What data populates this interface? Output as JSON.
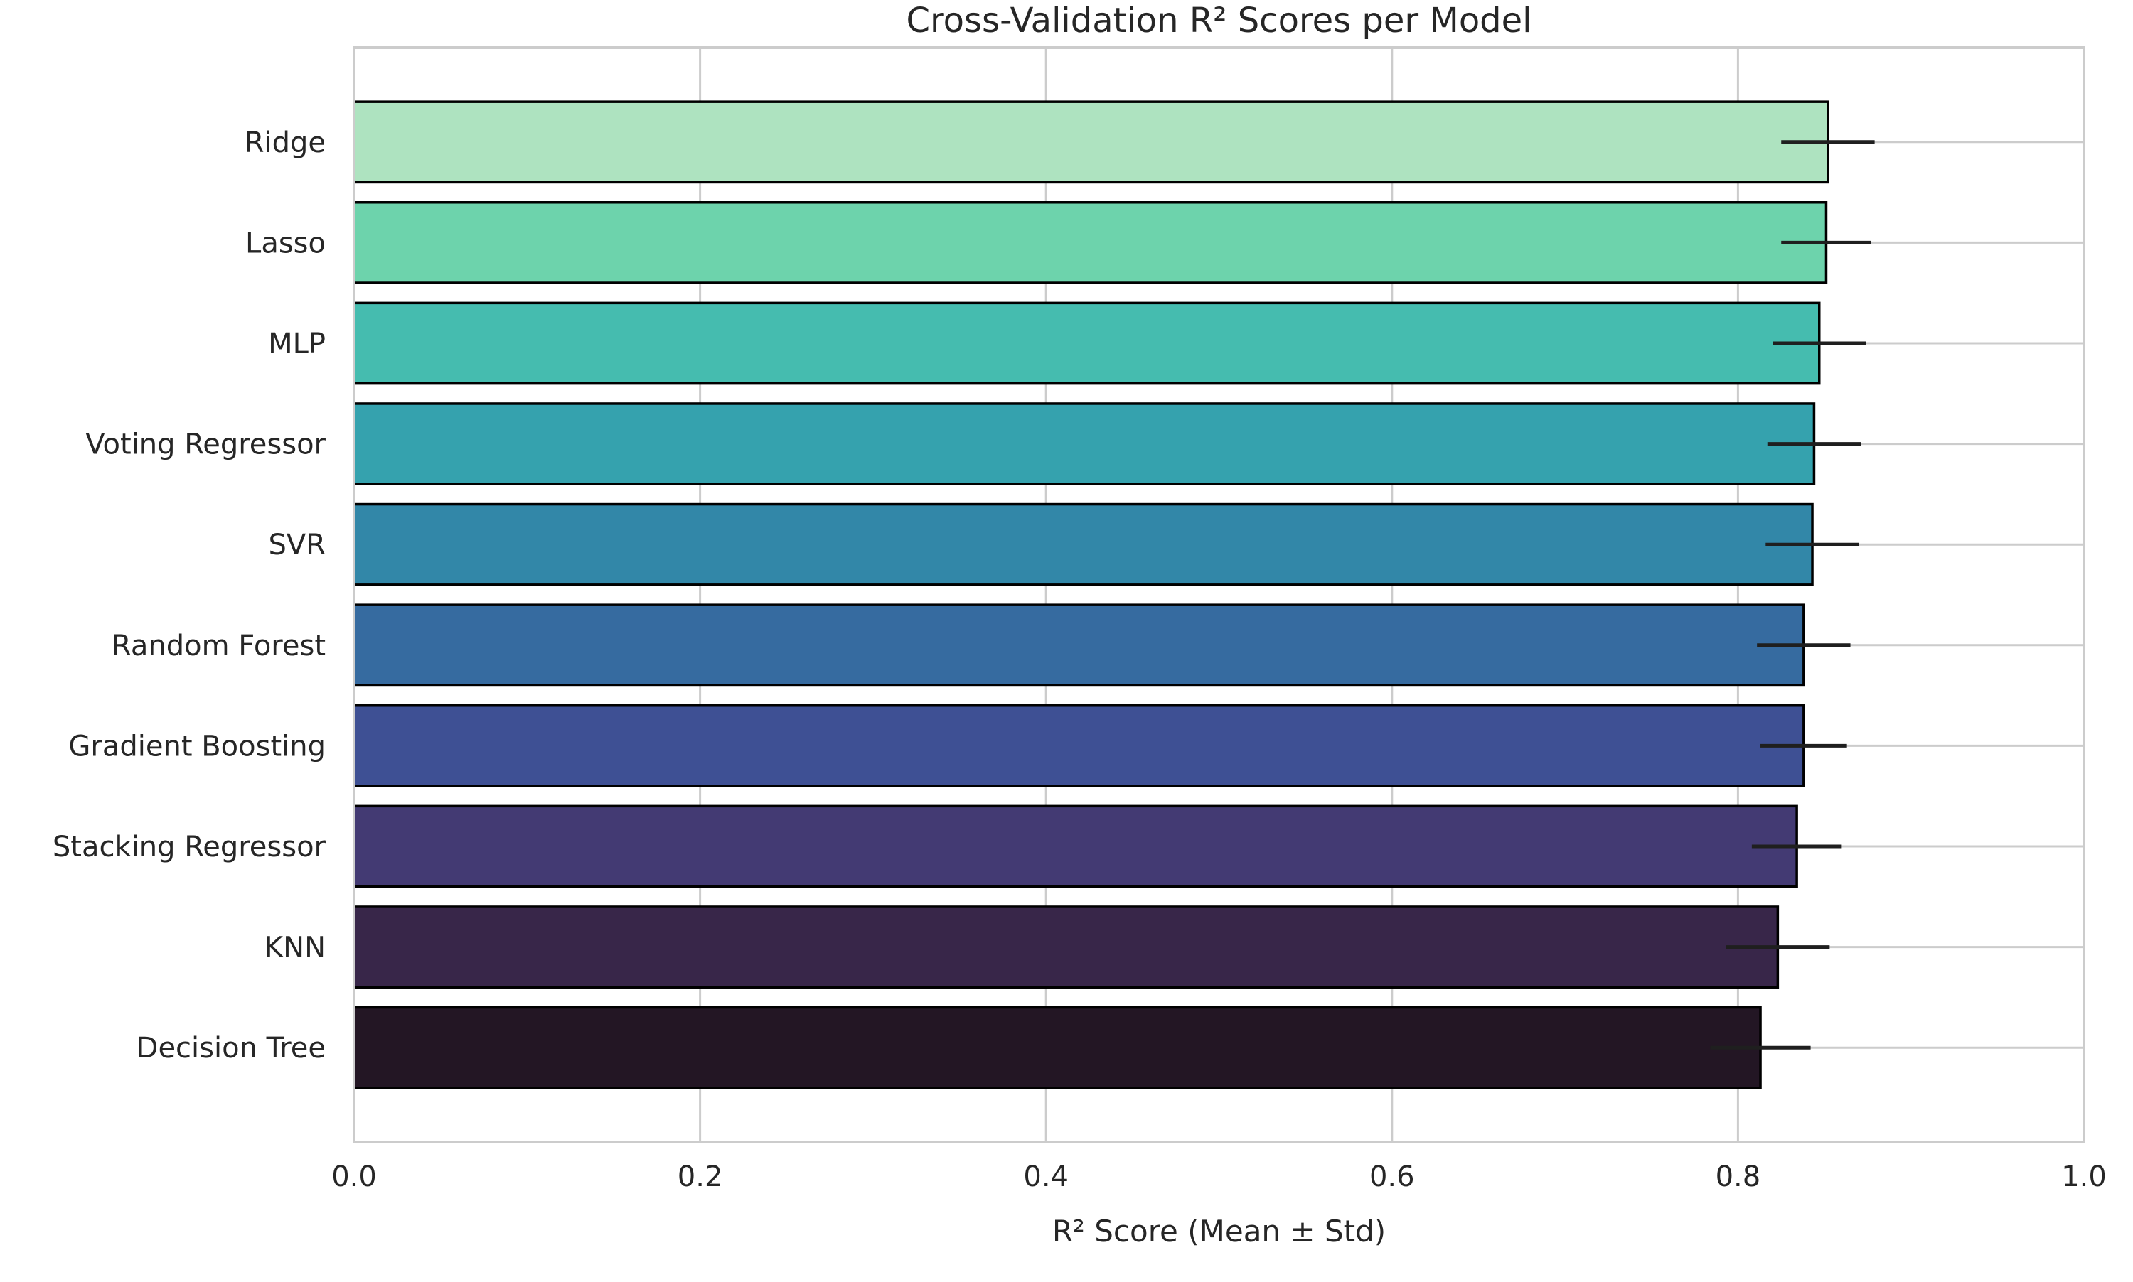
{
  "chart_data": {
    "type": "bar",
    "orientation": "horizontal",
    "title": "Cross-Validation R² Scores per Model",
    "xlabel": "R² Score (Mean ± Std)",
    "ylabel": "",
    "xlim": [
      0,
      1.0
    ],
    "x_ticks": [
      "0.0",
      "0.2",
      "0.4",
      "0.6",
      "0.8",
      "1.0"
    ],
    "x_tick_values": [
      0,
      0.2,
      0.4,
      0.6,
      0.8,
      1.0
    ],
    "grid": true,
    "categories": [
      "Ridge",
      "Lasso",
      "MLP",
      "Voting Regressor",
      "SVR",
      "Random Forest",
      "Gradient Boosting",
      "Stacking Regressor",
      "KNN",
      "Decision Tree"
    ],
    "values": [
      0.852,
      0.851,
      0.847,
      0.844,
      0.843,
      0.838,
      0.838,
      0.834,
      0.823,
      0.813
    ],
    "errors": [
      0.027,
      0.026,
      0.027,
      0.027,
      0.027,
      0.027,
      0.025,
      0.026,
      0.03,
      0.029
    ],
    "colors": [
      "#aee3c0",
      "#6dd3ac",
      "#45bcaf",
      "#35a2ae",
      "#3287a8",
      "#366ba0",
      "#3e5094",
      "#433a73",
      "#382649",
      "#231624"
    ]
  }
}
